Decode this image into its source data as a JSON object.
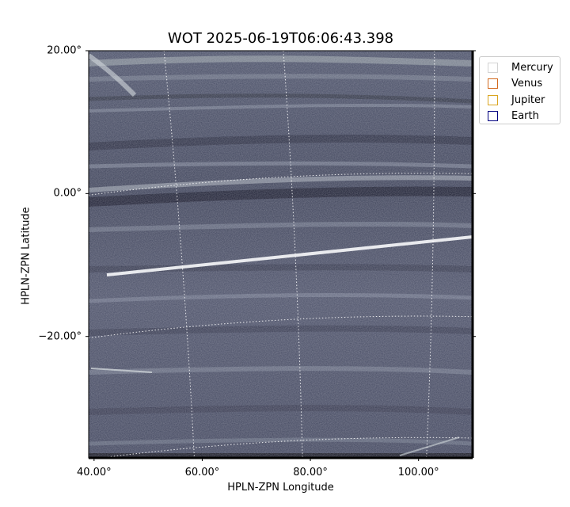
{
  "chart_data": {
    "type": "heatmap",
    "title": "WOT 2025-06-19T06:06:43.398",
    "xlabel": "HPLN-ZPN Longitude",
    "ylabel": "HPLN-ZPN Latitude",
    "xticks": [
      {
        "value": 40,
        "label": "40.00°"
      },
      {
        "value": 60,
        "label": "60.00°"
      },
      {
        "value": 80,
        "label": "80.00°"
      },
      {
        "value": 100,
        "label": "100.00°"
      }
    ],
    "yticks": [
      {
        "value": 20,
        "label": "20.00°"
      },
      {
        "value": 0,
        "label": "0.00°"
      },
      {
        "value": -20,
        "label": "−20.00°"
      }
    ],
    "xlim": [
      39,
      110
    ],
    "ylim": [
      -37,
      20
    ],
    "colormap": "bone",
    "grid": true,
    "legend_position": "outside-top-right",
    "legend": [
      {
        "name": "Mercury",
        "color": "#d3d3d3"
      },
      {
        "name": "Venus",
        "color": "#d2691e"
      },
      {
        "name": "Jupiter",
        "color": "#daa520"
      },
      {
        "name": "Earth",
        "color": "#000080"
      }
    ]
  }
}
